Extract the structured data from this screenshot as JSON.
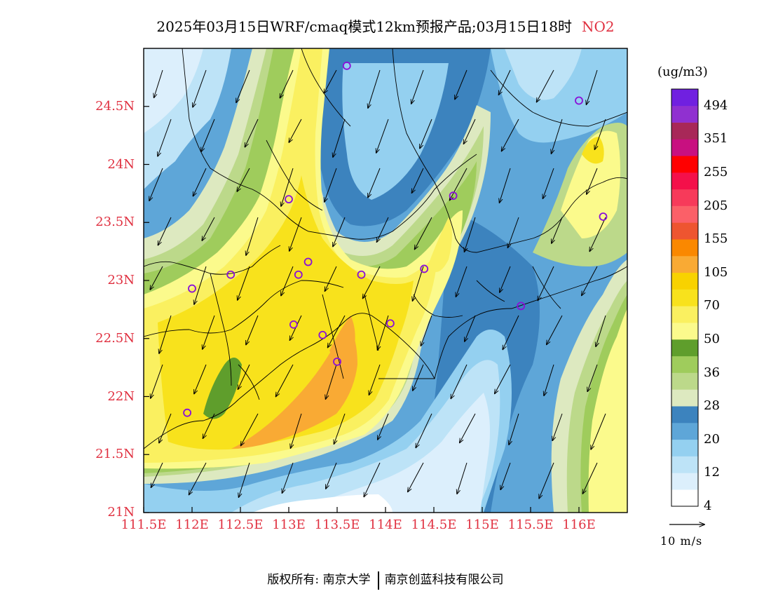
{
  "title": {
    "main": "2025年03月15日WRF/cmaq模式12km预报产品;03月15日18时",
    "species": "NO2"
  },
  "map": {
    "lon_range": [
      111.5,
      116.5
    ],
    "lat_range": [
      21.0,
      25.0
    ],
    "x_ticks": [
      "111.5E",
      "112E",
      "112.5E",
      "113E",
      "113.5E",
      "114E",
      "114.5E",
      "115E",
      "115.5E",
      "116E"
    ],
    "x_tick_values": [
      111.5,
      112.0,
      112.5,
      113.0,
      113.5,
      114.0,
      114.5,
      115.0,
      115.5,
      116.0
    ],
    "y_ticks": [
      "24.5N",
      "24N",
      "23.5N",
      "23N",
      "22.5N",
      "22N",
      "21.5N",
      "21N"
    ],
    "y_tick_values": [
      24.5,
      24.0,
      23.5,
      23.0,
      22.5,
      22.0,
      21.5,
      21.0
    ],
    "stations": [
      [
        113.6,
        24.85
      ],
      [
        116.0,
        24.55
      ],
      [
        113.0,
        23.7
      ],
      [
        114.7,
        23.73
      ],
      [
        116.25,
        23.55
      ],
      [
        112.0,
        22.93
      ],
      [
        112.4,
        23.05
      ],
      [
        113.1,
        23.05
      ],
      [
        113.2,
        23.16
      ],
      [
        113.75,
        23.05
      ],
      [
        114.4,
        23.1
      ],
      [
        115.4,
        22.78
      ],
      [
        113.05,
        22.62
      ],
      [
        113.35,
        22.53
      ],
      [
        114.05,
        22.63
      ],
      [
        113.5,
        22.3
      ],
      [
        111.95,
        21.86
      ]
    ]
  },
  "colorbar": {
    "unit": "(ug/m3)",
    "colors": [
      "#ffffff",
      "#dceffc",
      "#bde3f7",
      "#94d0f0",
      "#5ea6d8",
      "#3c83be",
      "#dde9c0",
      "#bcd98a",
      "#9fcc5c",
      "#5f9e2c",
      "#fbfa8c",
      "#faf060",
      "#f8e21c",
      "#f8d200",
      "#f9aa34",
      "#fa8800",
      "#ee5530",
      "#fb6068",
      "#f73a5a",
      "#f4104a",
      "#ff0000",
      "#c81080",
      "#a82858",
      "#9030d0",
      "#7020e0"
    ],
    "labels": [
      "494",
      "351",
      "255",
      "205",
      "155",
      "105",
      "70",
      "50",
      "36",
      "28",
      "20",
      "12",
      "4"
    ]
  },
  "wind_reference": "10  m/s",
  "copyright": {
    "prefix": "版权所有:",
    "org1": "南京大学",
    "org2": "南京创蓝科技有限公司"
  }
}
